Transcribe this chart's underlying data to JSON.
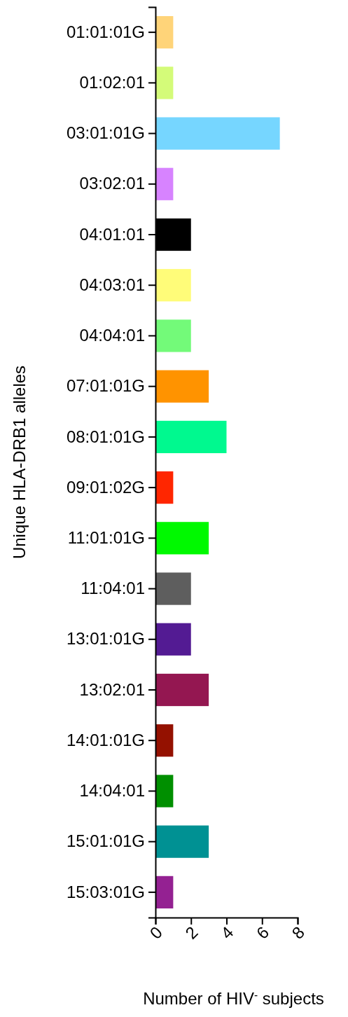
{
  "chart_data": {
    "type": "bar",
    "orientation": "horizontal",
    "xlabel": "Number of HIV$^{-}$ subjects",
    "ylabel": "Unique HLA-DRB1 alleles",
    "categories": [
      "01:01:01G",
      "01:02:01",
      "03:01:01G",
      "03:02:01",
      "04:01:01",
      "04:03:01",
      "04:04:01",
      "07:01:01G",
      "08:01:01G",
      "09:01:02G",
      "11:01:01G",
      "11:04:01",
      "13:01:01G",
      "13:02:01",
      "14:01:01G",
      "14:04:01",
      "15:01:01G",
      "15:03:01G"
    ],
    "values": [
      1,
      1,
      7,
      1,
      2,
      2,
      2,
      3,
      4,
      1,
      3,
      2,
      2,
      3,
      1,
      1,
      3,
      1
    ],
    "colors": [
      "#ffd479",
      "#d4fb79",
      "#76d6ff",
      "#d783ff",
      "#000000",
      "#fffc79",
      "#73fa79",
      "#ff9300",
      "#00f98f",
      "#ff2600",
      "#00f900",
      "#5e5e5e",
      "#531b93",
      "#941751",
      "#941100",
      "#008f00",
      "#009193",
      "#942192"
    ],
    "xlim": [
      0,
      8
    ],
    "xticks": [
      0,
      2,
      4,
      6,
      8
    ]
  }
}
